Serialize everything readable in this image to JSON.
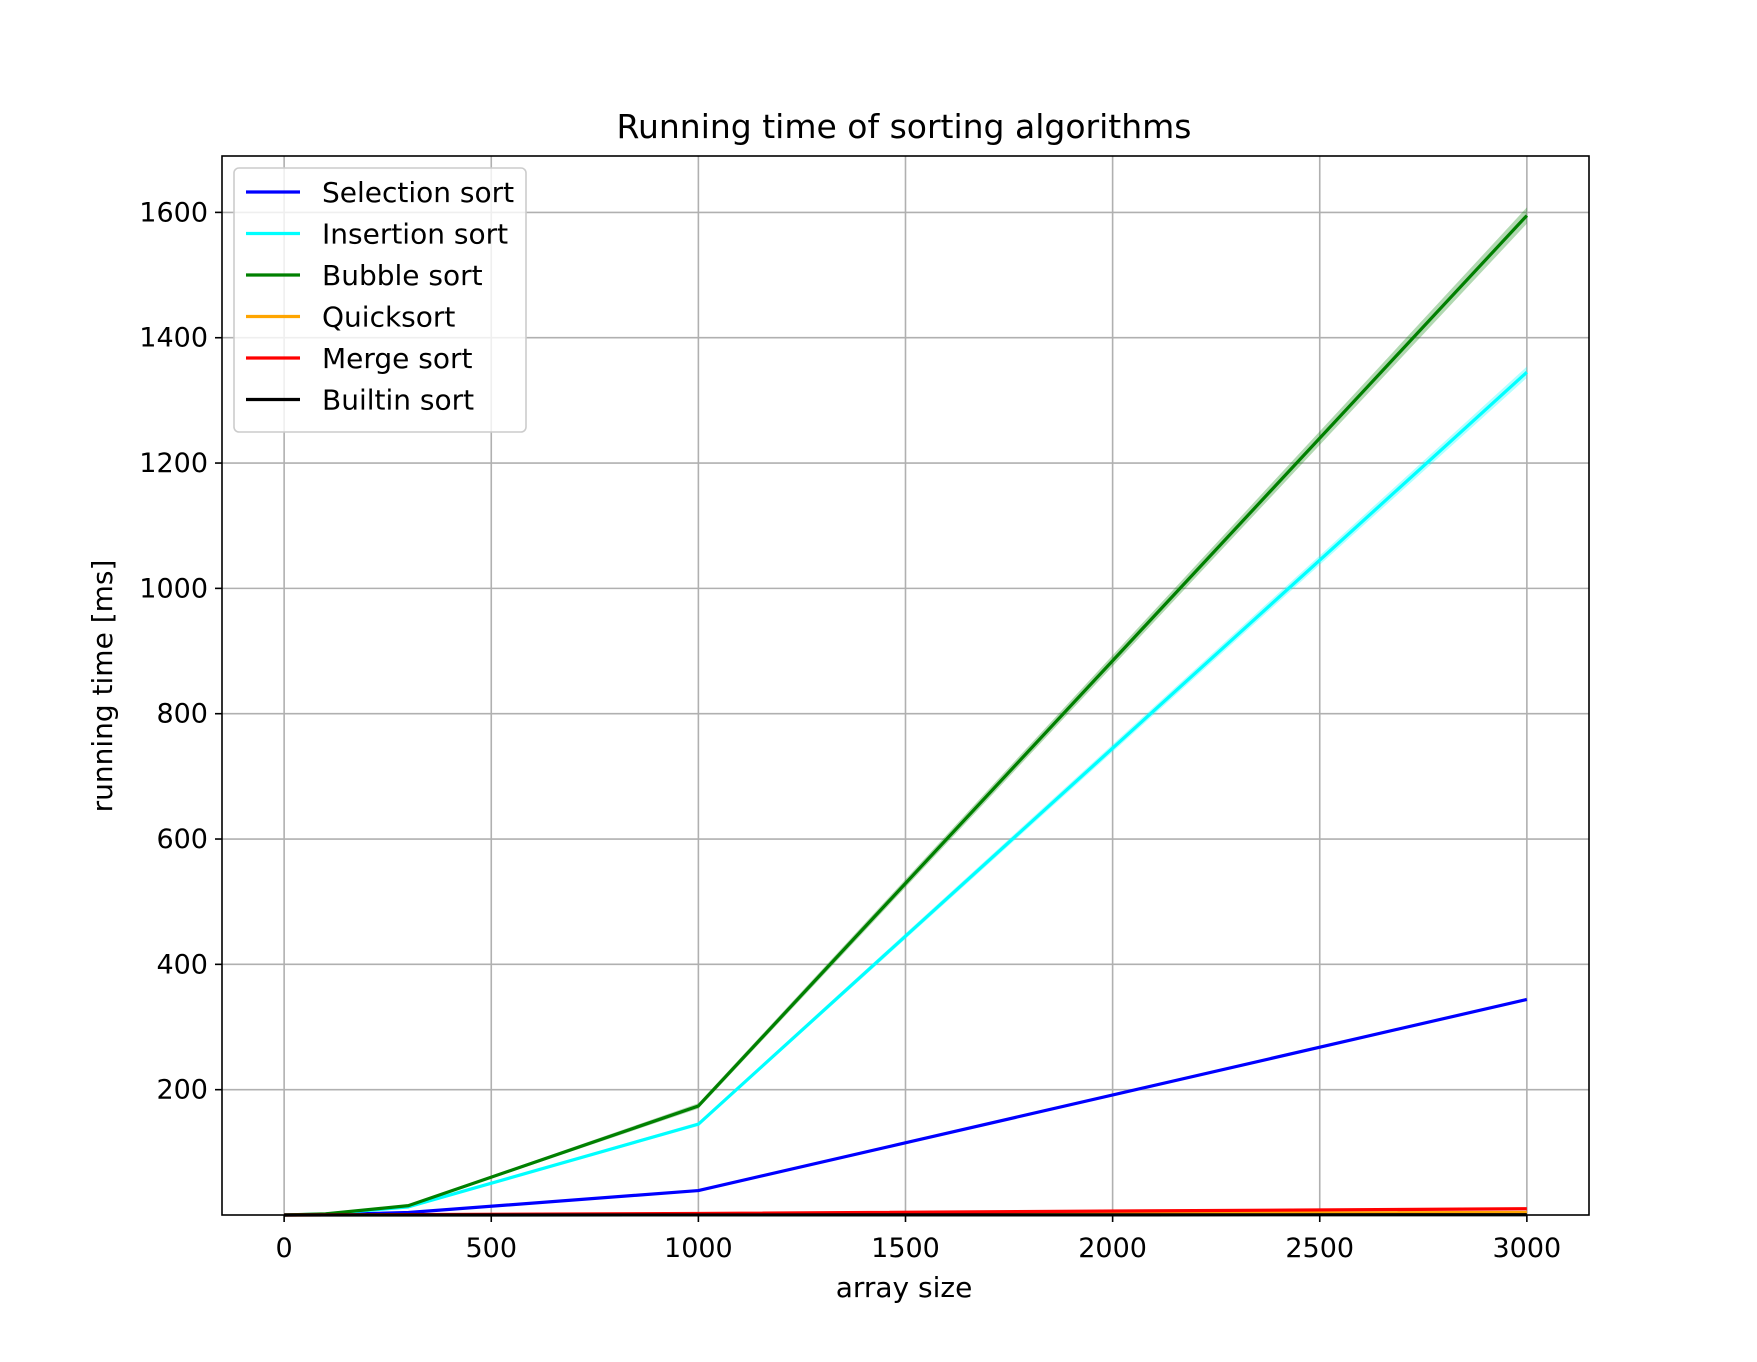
{
  "chart_data": {
    "type": "line",
    "title": "Running time of sorting algorithms",
    "xlabel": "array size",
    "ylabel": "running time [ms]",
    "xlim": [
      -150,
      3150
    ],
    "ylim": [
      0,
      1690
    ],
    "xticks": [
      0,
      500,
      1000,
      1500,
      2000,
      2500,
      3000
    ],
    "yticks": [
      200,
      400,
      600,
      800,
      1000,
      1200,
      1400,
      1600
    ],
    "grid": true,
    "legend_position": "top-left",
    "x": [
      0,
      100,
      300,
      1000,
      3000
    ],
    "series": [
      {
        "name": "Selection sort",
        "color": "#0000ff",
        "values": [
          0,
          0.5,
          4,
          39,
          344
        ],
        "band": 0
      },
      {
        "name": "Insertion sort",
        "color": "#00ffff",
        "values": [
          0,
          1.5,
          13,
          145,
          1345
        ],
        "band": 9
      },
      {
        "name": "Bubble sort",
        "color": "#008000",
        "values": [
          0,
          1.8,
          15,
          174,
          1595
        ],
        "band": 13
      },
      {
        "name": "Quicksort",
        "color": "#ffa500",
        "values": [
          0,
          0.1,
          0.3,
          1.2,
          4
        ],
        "band": 0
      },
      {
        "name": "Merge sort",
        "color": "#ff0000",
        "values": [
          0,
          0.2,
          0.6,
          2.5,
          10
        ],
        "band": 0
      },
      {
        "name": "Builtin sort",
        "color": "#000000",
        "values": [
          0,
          0.01,
          0.03,
          0.1,
          0.4
        ],
        "band": 0
      }
    ]
  }
}
